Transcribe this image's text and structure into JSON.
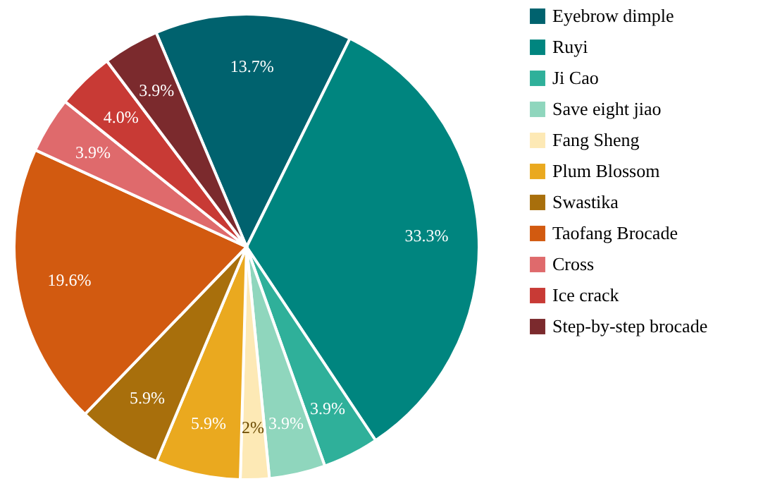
{
  "chart_data": {
    "type": "pie",
    "categories": [
      "Eyebrow dimple",
      "Ruyi",
      "Ji Cao",
      "Save eight jiao",
      "Fang Sheng",
      "Plum Blossom",
      "Swastika",
      "Taofang Brocade",
      "Cross",
      "Ice crack",
      "Step-by-step brocade"
    ],
    "values": [
      13.7,
      33.3,
      3.9,
      3.9,
      2,
      5.9,
      5.9,
      19.6,
      3.9,
      4.0,
      3.9
    ],
    "colors": [
      "#00626e",
      "#00857f",
      "#2fb09a",
      "#8fd6bd",
      "#fde9b5",
      "#eaa91f",
      "#a86f0c",
      "#d25a10",
      "#df6a6c",
      "#c83a35",
      "#7b2a2d"
    ],
    "value_labels": [
      "13.7%",
      "33.3%",
      "3.9%",
      "3.9%",
      "2%",
      "5.9%",
      "5.9%",
      "19.6%",
      "3.9%",
      "4.0%",
      "3.9%"
    ],
    "legend": "right"
  }
}
